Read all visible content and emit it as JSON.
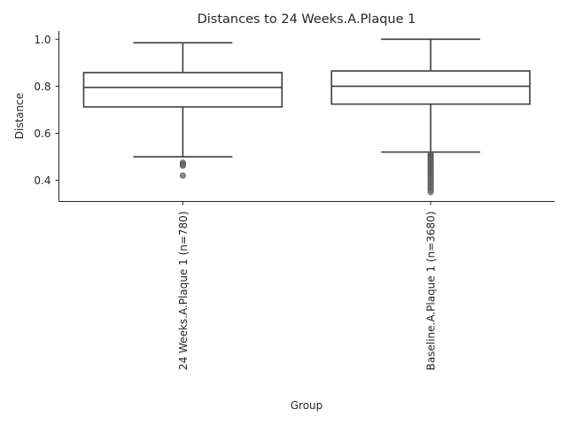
{
  "chart_data": {
    "type": "box",
    "title": "Distances to 24 Weeks.A.Plaque 1",
    "xlabel": "Group",
    "ylabel": "Distance",
    "ylim": [
      0.31,
      1.035
    ],
    "yticks": [
      "0.4",
      "0.6",
      "0.8",
      "1.0"
    ],
    "ytick_values": [
      0.4,
      0.6,
      0.8,
      1.0
    ],
    "grid": false,
    "colors": {
      "box_line": "#3d3d3d",
      "outlier": "#666666",
      "spine": "#262626"
    },
    "categories": [
      "24 Weeks.A.Plaque 1 (n=780)",
      "Baseline.A.Plaque 1 (n=3680)"
    ],
    "boxes": [
      {
        "label": "24 Weeks.A.Plaque 1 (n=780)",
        "whisker_low": 0.5,
        "q1": 0.712,
        "median": 0.795,
        "q3": 0.858,
        "whisker_high": 0.985,
        "outliers": [
          0.475,
          0.468,
          0.462,
          0.42
        ]
      },
      {
        "label": "Baseline.A.Plaque 1 (n=3680)",
        "whisker_low": 0.52,
        "q1": 0.724,
        "median": 0.8,
        "q3": 0.865,
        "whisker_high": 1.0,
        "outliers": [
          0.51,
          0.505,
          0.5,
          0.495,
          0.49,
          0.485,
          0.478,
          0.47,
          0.462,
          0.455,
          0.448,
          0.44,
          0.432,
          0.425,
          0.418,
          0.41,
          0.4,
          0.39,
          0.38,
          0.37,
          0.36,
          0.35
        ]
      }
    ]
  }
}
